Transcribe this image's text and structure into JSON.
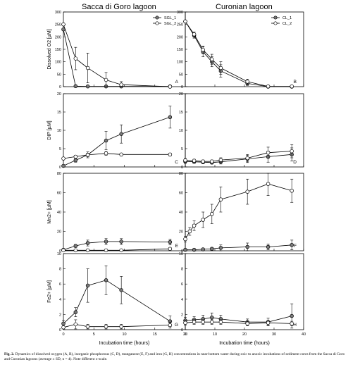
{
  "titles": {
    "left": "Sacca di Goro lagoon",
    "right": "Curonian lagoon"
  },
  "x_label": "Incubation time (hours)",
  "caption": {
    "lead": "Fig. 2.",
    "text": "Dynamics of dissolved oxygen (A, B), inorganic phosphorous (C, D), manganese (E, F) and iron (G, H) concentrations in near-bottom water during oxic to anoxic incubations of sediment cores from the Sacca di Goro and Curonian lagoons (average ± SD, n = 4). Note different x-scale."
  },
  "chart_data": [
    {
      "panel": "A",
      "type": "line",
      "column": "left",
      "row": 0,
      "ylabel": "Dissolved O2 [µM]",
      "xlim": [
        0,
        20
      ],
      "xticks": [
        0,
        5,
        10,
        15,
        20
      ],
      "ylim": [
        0,
        300
      ],
      "yticks": [
        0,
        50,
        100,
        150,
        200,
        250,
        300
      ],
      "legend": {
        "placement": "top-right",
        "entries": [
          "SGL_1",
          "SGL_2"
        ]
      },
      "series": [
        {
          "name": "SGL_1",
          "marker": "filled",
          "x": [
            0,
            2,
            4,
            7,
            9.5,
            17.5
          ],
          "y": [
            230,
            2,
            1,
            1,
            1,
            1
          ],
          "err": [
            0,
            0,
            0,
            0,
            0,
            0
          ]
        },
        {
          "name": "SGL_2",
          "marker": "open",
          "x": [
            0,
            2,
            4,
            7,
            9.5,
            17.5
          ],
          "y": [
            250,
            113,
            75,
            27,
            8,
            0
          ],
          "err": [
            5,
            45,
            60,
            30,
            12,
            0
          ]
        }
      ]
    },
    {
      "panel": "B",
      "type": "line",
      "column": "right",
      "row": 0,
      "ylabel": "",
      "xlim": [
        0,
        40
      ],
      "xticks": [
        0,
        10,
        20,
        30,
        40
      ],
      "ylim": [
        0,
        300
      ],
      "yticks": [
        0,
        50,
        100,
        150,
        200,
        250,
        300
      ],
      "legend": {
        "placement": "top-right",
        "entries": [
          "CL_1",
          "CL_2"
        ]
      },
      "series": [
        {
          "name": "CL_1",
          "marker": "filled",
          "x": [
            0,
            3,
            6,
            9,
            12,
            21,
            28,
            36
          ],
          "y": [
            262,
            205,
            140,
            100,
            63,
            13,
            0,
            0
          ],
          "err": [
            5,
            10,
            20,
            20,
            25,
            8,
            0,
            0
          ]
        },
        {
          "name": "CL_2",
          "marker": "open",
          "x": [
            0,
            3,
            6,
            9,
            12,
            21,
            28,
            36
          ],
          "y": [
            262,
            210,
            148,
            110,
            75,
            20,
            1,
            1
          ],
          "err": [
            5,
            10,
            15,
            20,
            25,
            10,
            0,
            0
          ]
        }
      ]
    },
    {
      "panel": "C",
      "type": "line",
      "column": "left",
      "row": 1,
      "ylabel": "DIP [µM]",
      "xlim": [
        0,
        20
      ],
      "xticks": [
        0,
        5,
        10,
        15,
        20
      ],
      "ylim": [
        0,
        20
      ],
      "yticks": [
        0,
        5,
        10,
        15,
        20
      ],
      "series": [
        {
          "name": "SGL_1",
          "marker": "filled",
          "x": [
            0,
            2,
            4,
            7,
            9.5,
            17.5
          ],
          "y": [
            0.3,
            1.8,
            3.3,
            7.2,
            9.0,
            13.6
          ],
          "err": [
            0.2,
            0.5,
            0.8,
            2.5,
            2.5,
            3.0
          ]
        },
        {
          "name": "SGL_2",
          "marker": "open",
          "x": [
            0,
            2,
            4,
            7,
            9.5,
            17.5
          ],
          "y": [
            2.3,
            2.8,
            3.3,
            3.7,
            3.4,
            3.4
          ],
          "err": [
            0.3,
            0.4,
            0.5,
            0.5,
            0.4,
            0.4
          ]
        }
      ]
    },
    {
      "panel": "D",
      "type": "line",
      "column": "right",
      "row": 1,
      "ylabel": "",
      "xlim": [
        0,
        40
      ],
      "xticks": [
        0,
        10,
        20,
        30,
        40
      ],
      "ylim": [
        0,
        20
      ],
      "yticks": [
        0,
        5,
        10,
        15,
        20
      ],
      "series": [
        {
          "name": "CL_1",
          "marker": "filled",
          "x": [
            0,
            3,
            6,
            9,
            12,
            21,
            28,
            36
          ],
          "y": [
            1.5,
            1.4,
            1.3,
            1.2,
            1.4,
            2.2,
            2.8,
            3.4
          ],
          "err": [
            0.5,
            0.4,
            0.4,
            0.4,
            0.6,
            1.0,
            1.5,
            1.8
          ]
        },
        {
          "name": "CL_2",
          "marker": "open",
          "x": [
            0,
            3,
            6,
            9,
            12,
            21,
            28,
            36
          ],
          "y": [
            1.8,
            1.7,
            1.5,
            1.5,
            1.9,
            2.4,
            3.9,
            4.3
          ],
          "err": [
            0.5,
            0.4,
            0.4,
            0.4,
            0.6,
            1.0,
            1.5,
            1.8
          ]
        }
      ]
    },
    {
      "panel": "E",
      "type": "line",
      "column": "left",
      "row": 2,
      "ylabel": "Mn2+ [µM]",
      "xlim": [
        0,
        20
      ],
      "xticks": [
        0,
        5,
        10,
        15,
        20
      ],
      "ylim": [
        0,
        80
      ],
      "yticks": [
        0,
        20,
        40,
        60,
        80
      ],
      "series": [
        {
          "name": "SGL_1",
          "marker": "filled",
          "x": [
            0,
            2,
            4,
            7,
            9.5,
            17.5
          ],
          "y": [
            1,
            5,
            8,
            9.5,
            9.5,
            9
          ],
          "err": [
            0.5,
            1.5,
            3,
            3,
            3,
            3
          ]
        },
        {
          "name": "SGL_2",
          "marker": "open",
          "x": [
            0,
            2,
            4,
            7,
            9.5,
            17.5
          ],
          "y": [
            0.5,
            0.5,
            0.5,
            0.5,
            0.5,
            2
          ],
          "err": [
            0.2,
            0.2,
            0.2,
            0.2,
            0.2,
            1
          ]
        }
      ]
    },
    {
      "panel": "F",
      "type": "line",
      "column": "right",
      "row": 2,
      "ylabel": "",
      "xlim": [
        0,
        40
      ],
      "xticks": [
        0,
        10,
        20,
        30,
        40
      ],
      "ylim": [
        0,
        80
      ],
      "yticks": [
        0,
        20,
        40,
        60,
        80
      ],
      "series": [
        {
          "name": "CL_1",
          "marker": "filled",
          "x": [
            0,
            3,
            6,
            9,
            12,
            21,
            28,
            36
          ],
          "y": [
            1,
            1,
            1.5,
            2,
            3,
            4,
            4,
            6
          ],
          "err": [
            0.5,
            0.5,
            1,
            1.5,
            3,
            4,
            3,
            5
          ]
        },
        {
          "name": "CL_2",
          "marker": "open",
          "x": [
            0,
            1.5,
            3,
            6,
            9,
            12,
            21,
            28,
            36
          ],
          "y": [
            12,
            20,
            26,
            32,
            38,
            53,
            61,
            69,
            62
          ],
          "err": [
            3,
            4,
            5,
            8,
            10,
            13,
            13,
            12,
            12
          ]
        }
      ]
    },
    {
      "panel": "G",
      "type": "line",
      "column": "left",
      "row": 3,
      "ylabel": "Fe2+ [µM]",
      "xlim": [
        0,
        20
      ],
      "xticks": [
        0,
        5,
        10,
        15,
        20
      ],
      "ylim": [
        0,
        10
      ],
      "yticks": [
        0,
        2,
        4,
        6,
        8,
        10
      ],
      "series": [
        {
          "name": "SGL_1",
          "marker": "filled",
          "x": [
            0,
            2,
            4,
            7,
            9.5,
            17.5
          ],
          "y": [
            0.8,
            2.3,
            5.8,
            6.5,
            5.2,
            1.1
          ],
          "err": [
            0.4,
            0.6,
            2.2,
            1.9,
            1.8,
            0.7
          ]
        },
        {
          "name": "SGL_2",
          "marker": "open",
          "x": [
            0,
            2,
            4,
            7,
            9.5,
            17.5
          ],
          "y": [
            0.3,
            0.7,
            0.4,
            0.4,
            0.4,
            0.6
          ],
          "err": [
            0.2,
            0.6,
            0.3,
            0.3,
            0.3,
            0.4
          ]
        }
      ]
    },
    {
      "panel": "H",
      "type": "line",
      "column": "right",
      "row": 3,
      "ylabel": "",
      "xlim": [
        0,
        40
      ],
      "xticks": [
        0,
        10,
        20,
        30,
        40
      ],
      "ylim": [
        0,
        10
      ],
      "yticks": [
        0,
        2,
        4,
        6,
        8,
        10
      ],
      "series": [
        {
          "name": "CL_1",
          "marker": "filled",
          "x": [
            0,
            3,
            6,
            9,
            12,
            21,
            28,
            36
          ],
          "y": [
            1.2,
            1.3,
            1.4,
            1.6,
            1.4,
            1.0,
            1.0,
            1.8
          ],
          "err": [
            0.4,
            0.4,
            0.5,
            0.6,
            0.5,
            0.4,
            0.5,
            1.6
          ]
        },
        {
          "name": "CL_2",
          "marker": "open",
          "x": [
            0,
            3,
            6,
            9,
            12,
            21,
            28,
            36
          ],
          "y": [
            0.9,
            1.0,
            1.0,
            1.0,
            1.0,
            0.8,
            0.9,
            0.8
          ],
          "err": [
            0.3,
            0.3,
            0.3,
            0.3,
            0.3,
            0.3,
            0.3,
            0.3
          ]
        }
      ]
    }
  ]
}
